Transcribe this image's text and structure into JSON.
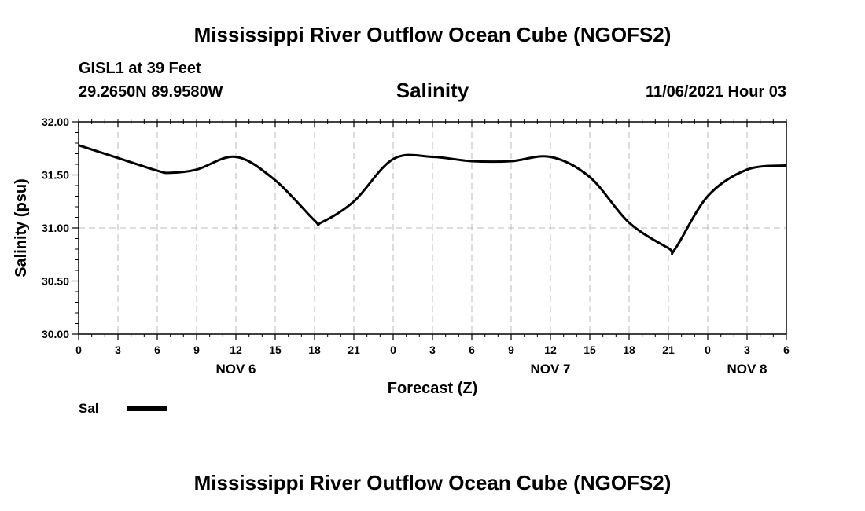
{
  "header": {
    "title": "Mississippi River Outflow Ocean Cube (NGOFS2)",
    "station": "GISL1 at 39 Feet",
    "coords": "29.2650N  89.9580W",
    "subtitle": "Salinity",
    "datetime": "11/06/2021 Hour 03"
  },
  "footer": {
    "title": "Mississippi River Outflow Ocean Cube (NGOFS2)"
  },
  "legend": {
    "label": "Sal",
    "color": "#000000"
  },
  "chart_data": {
    "type": "line",
    "title": "Salinity",
    "xlabel": "Forecast (Z)",
    "ylabel": "Salinity (psu)",
    "xlim": [
      0,
      54
    ],
    "ylim": [
      30.0,
      32.0
    ],
    "grid": true,
    "legend_position": "bottom-left",
    "y_ticks": [
      "30.00",
      "30.50",
      "31.00",
      "31.50",
      "32.00"
    ],
    "x_ticks": [
      {
        "t": 0,
        "label": "0"
      },
      {
        "t": 3,
        "label": "3"
      },
      {
        "t": 6,
        "label": "6"
      },
      {
        "t": 9,
        "label": "9"
      },
      {
        "t": 12,
        "label": "12"
      },
      {
        "t": 15,
        "label": "15"
      },
      {
        "t": 18,
        "label": "18"
      },
      {
        "t": 21,
        "label": "21"
      },
      {
        "t": 24,
        "label": "0"
      },
      {
        "t": 27,
        "label": "3"
      },
      {
        "t": 30,
        "label": "6"
      },
      {
        "t": 33,
        "label": "9"
      },
      {
        "t": 36,
        "label": "12"
      },
      {
        "t": 39,
        "label": "15"
      },
      {
        "t": 42,
        "label": "18"
      },
      {
        "t": 45,
        "label": "21"
      },
      {
        "t": 48,
        "label": "0"
      },
      {
        "t": 51,
        "label": "3"
      },
      {
        "t": 54,
        "label": "6"
      }
    ],
    "date_labels": [
      {
        "t": 12,
        "label": "NOV 6"
      },
      {
        "t": 36,
        "label": "NOV 7"
      },
      {
        "t": 51,
        "label": "NOV 8"
      }
    ],
    "series": [
      {
        "name": "Sal",
        "x": [
          0,
          3,
          6,
          7,
          9,
          12,
          15,
          18,
          18.5,
          21,
          24,
          27,
          30,
          33,
          36,
          39,
          42,
          45,
          45.5,
          48,
          51,
          54
        ],
        "y": [
          31.78,
          31.66,
          31.54,
          31.52,
          31.55,
          31.67,
          31.45,
          31.07,
          31.05,
          31.25,
          31.65,
          31.67,
          31.63,
          31.63,
          31.67,
          31.48,
          31.05,
          30.81,
          30.8,
          31.3,
          31.55,
          31.59
        ]
      }
    ]
  }
}
